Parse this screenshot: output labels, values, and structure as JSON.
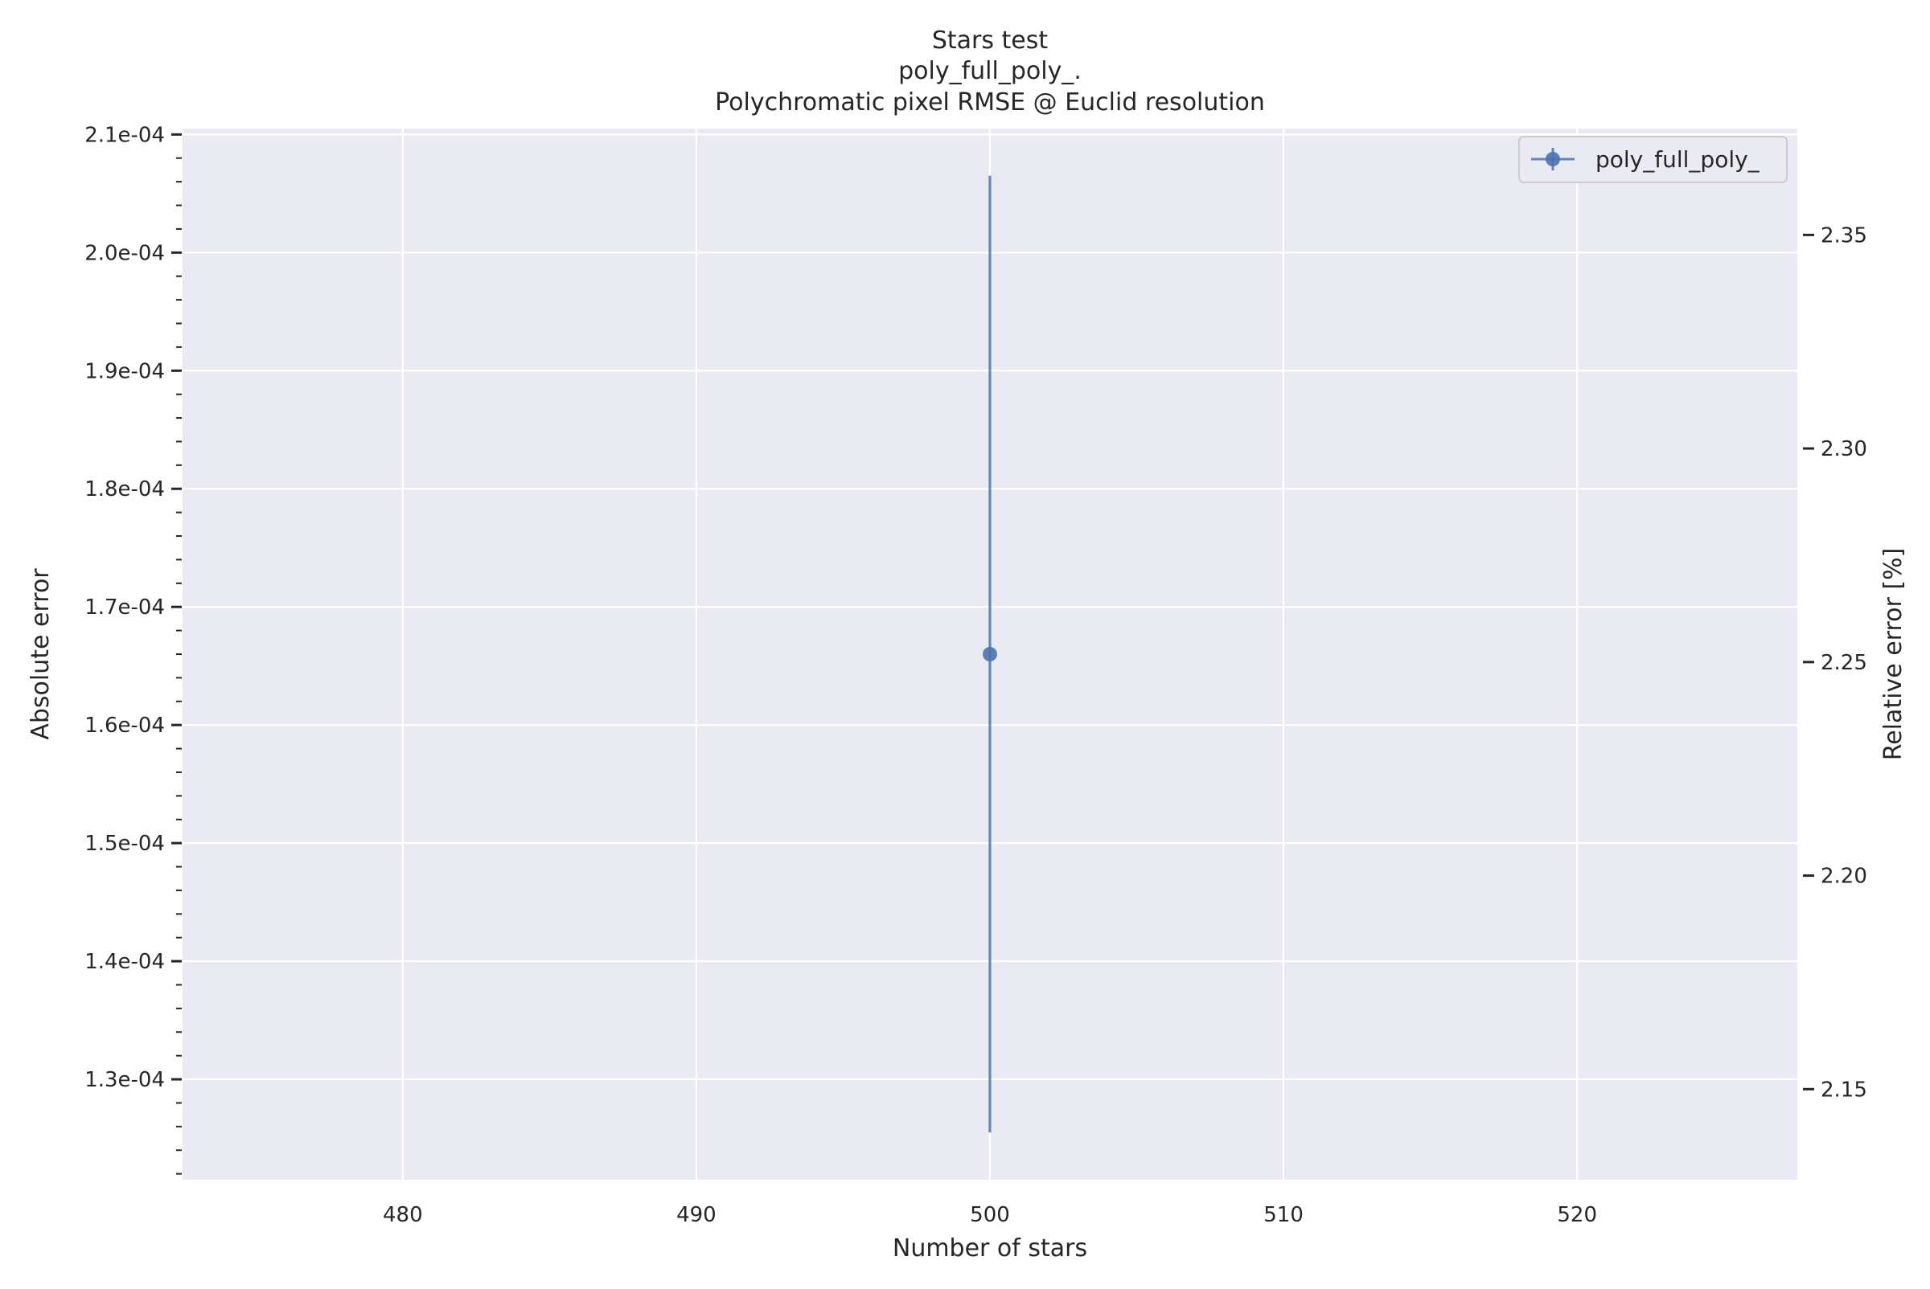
{
  "chart_data": {
    "type": "scatter",
    "title": [
      "Stars test",
      "poly_full_poly_.",
      "Polychromatic pixel RMSE @ Euclid resolution"
    ],
    "xlabel": "Number of stars",
    "ylabel": "Absolute error",
    "ylabel_right": "Relative error [%]",
    "xlim": [
      472.5,
      527.5
    ],
    "ylim": [
      0.0001215,
      0.0002105
    ],
    "ylim_right": [
      2.1288,
      2.3749
    ],
    "x_ticks": [
      480,
      490,
      500,
      510,
      520
    ],
    "x_tick_labels": [
      "480",
      "490",
      "500",
      "510",
      "520"
    ],
    "y_ticks": [
      0.00013,
      0.00014,
      0.00015,
      0.00016,
      0.00017,
      0.00018,
      0.00019,
      0.0002,
      0.00021
    ],
    "y_tick_labels": [
      "1.3e-04",
      "1.4e-04",
      "1.5e-04",
      "1.6e-04",
      "1.7e-04",
      "1.8e-04",
      "1.9e-04",
      "2.0e-04",
      "2.1e-04"
    ],
    "y_minor_step": 2e-06,
    "y_right_ticks": [
      2.15,
      2.2,
      2.25,
      2.3,
      2.35
    ],
    "y_right_tick_labels": [
      "2.15",
      "2.20",
      "2.25",
      "2.30",
      "2.35"
    ],
    "grid": true,
    "legend_position": "top-right",
    "series": [
      {
        "name": "poly_full_poly_",
        "color": "#4c72b0",
        "points": [
          {
            "x": 500,
            "y": 0.000166,
            "err_low": 0.0001255,
            "err_high": 0.0002065
          }
        ]
      }
    ],
    "colors": {
      "plot_background": "#eaeaf2",
      "grid": "#ffffff",
      "text": "#262626",
      "series": "#4c72b0"
    }
  }
}
